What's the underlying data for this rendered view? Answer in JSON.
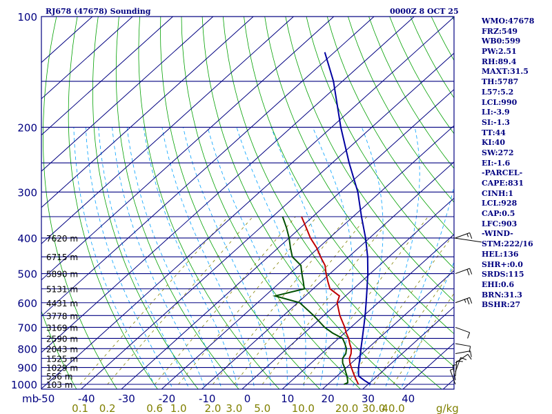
{
  "header": {
    "station": "RJ678 (47678) Sounding",
    "time": "0000Z  8 OCT 25"
  },
  "side_params": [
    "WMO:47678",
    "FRZ:549",
    "WB0:599",
    "PW:2.51",
    "RH:89.4",
    "MAXT:31.5",
    "TH:5787",
    "L57:5.2",
    "LCL:990",
    "LI:-3.9",
    "SI:-1.3",
    "TT:44",
    "KI:40",
    "SW:272",
    "EI:-1.6",
    "-PARCEL-",
    "CAPE:831",
    "CINH:1",
    "LCL:928",
    "CAP:0.5",
    "LFC:903",
    "-WIND-",
    "STM:222/16",
    "HEL:136",
    "SHR+:0.0",
    "SRDS:115",
    "EHI:0.6",
    "BRN:31.3",
    "BSHR:27"
  ],
  "colors": {
    "frame": "#000080",
    "isobar": "#000080",
    "isotherm": "#000080",
    "dry_adiabat": "#00a000",
    "moist_adiabat": "#00a0ff",
    "mixing_ratio": "#808000",
    "temperature": "#c00000",
    "dewpoint": "#005000",
    "parcel": "#0000a0",
    "wind": "#000000"
  },
  "chart_data": {
    "type": "skew-t",
    "title": "RJ678 (47678) Sounding",
    "subtitle": "0000Z  8 OCT 25",
    "y_unit": "mb",
    "x_unit": "C",
    "pressure_ticks": [
      100,
      200,
      300,
      400,
      500,
      600,
      700,
      800,
      900,
      1000
    ],
    "temperature_ticks": [
      -50,
      -40,
      -30,
      -20,
      -10,
      0,
      10,
      20,
      30,
      40
    ],
    "mixing_ratio_unit": "g/kg",
    "mixing_ratio_ticks": [
      "0.1",
      "0.2",
      "0.6",
      "1.0",
      "2.0",
      "3.0",
      "5.0",
      "10.0",
      "20.0",
      "30.0",
      "40.0"
    ],
    "height_labels": [
      {
        "p": 1000,
        "label": "103 m"
      },
      {
        "p": 950,
        "label": "556 m"
      },
      {
        "p": 900,
        "label": "1029 m"
      },
      {
        "p": 850,
        "label": "1525 m"
      },
      {
        "p": 800,
        "label": "2043 m"
      },
      {
        "p": 750,
        "label": "2590 m"
      },
      {
        "p": 700,
        "label": "3169 m"
      },
      {
        "p": 650,
        "label": "3778 m"
      },
      {
        "p": 600,
        "label": "4431 m"
      },
      {
        "p": 550,
        "label": "5131 m"
      },
      {
        "p": 500,
        "label": "5890 m"
      },
      {
        "p": 450,
        "label": "6715 m"
      },
      {
        "p": 400,
        "label": "7620 m"
      }
    ],
    "series": [
      {
        "key": "temperature",
        "p": [
          1000,
          975,
          950,
          925,
          900,
          875,
          850,
          825,
          800,
          775,
          750,
          725,
          700,
          650,
          600,
          575,
          550,
          525,
          500,
          475,
          450,
          425,
          400,
          375,
          350
        ],
        "t": [
          27.6,
          26.0,
          24.4,
          22.8,
          21.2,
          19.6,
          18.2,
          17.3,
          16.0,
          14.2,
          12.5,
          10.4,
          8.5,
          4.0,
          -0.2,
          -1.5,
          -5.8,
          -8.4,
          -11.0,
          -13.5,
          -17.0,
          -20.5,
          -24.7,
          -28.6,
          -32.8
        ]
      },
      {
        "key": "dewpoint",
        "p": [
          1000,
          990,
          975,
          950,
          925,
          900,
          875,
          850,
          825,
          800,
          775,
          750,
          725,
          700,
          650,
          600,
          575,
          550,
          525,
          500,
          475,
          450,
          425,
          400,
          375,
          350
        ],
        "t": [
          24.0,
          24.5,
          23.8,
          22.5,
          21.0,
          19.5,
          17.8,
          16.5,
          16.0,
          14.8,
          13.0,
          11.0,
          7.0,
          3.5,
          -2.5,
          -9.5,
          -17.5,
          -12.2,
          -14.5,
          -17.0,
          -19.5,
          -24.0,
          -27.0,
          -30.0,
          -33.5,
          -37.5
        ]
      },
      {
        "key": "parcel",
        "p": [
          1000,
          975,
          950,
          925,
          900,
          850,
          800,
          750,
          700,
          650,
          600,
          550,
          500,
          450,
          400,
          350,
          300,
          250,
          200,
          150,
          125
        ],
        "t": [
          30.6,
          27.9,
          25.4,
          24.2,
          23.0,
          20.8,
          18.4,
          15.9,
          13.2,
          10.3,
          7.0,
          3.4,
          -0.6,
          -5.3,
          -11.0,
          -17.9,
          -25.6,
          -35.8,
          -47.7,
          -62.2,
          -72.4
        ]
      }
    ],
    "wind_barbs": [
      {
        "p": 1000,
        "dir": 160,
        "spd": 5
      },
      {
        "p": 975,
        "dir": 170,
        "spd": 5
      },
      {
        "p": 950,
        "dir": 185,
        "spd": 10
      },
      {
        "p": 925,
        "dir": 200,
        "spd": 10
      },
      {
        "p": 875,
        "dir": 235,
        "spd": 10
      },
      {
        "p": 825,
        "dir": 260,
        "spd": 10
      },
      {
        "p": 775,
        "dir": 280,
        "spd": 10
      },
      {
        "p": 700,
        "dir": 290,
        "spd": 10
      },
      {
        "p": 600,
        "dir": 250,
        "spd": 25
      },
      {
        "p": 500,
        "dir": 250,
        "spd": 20
      },
      {
        "p": 400,
        "dir": 250,
        "spd": 15
      }
    ]
  }
}
